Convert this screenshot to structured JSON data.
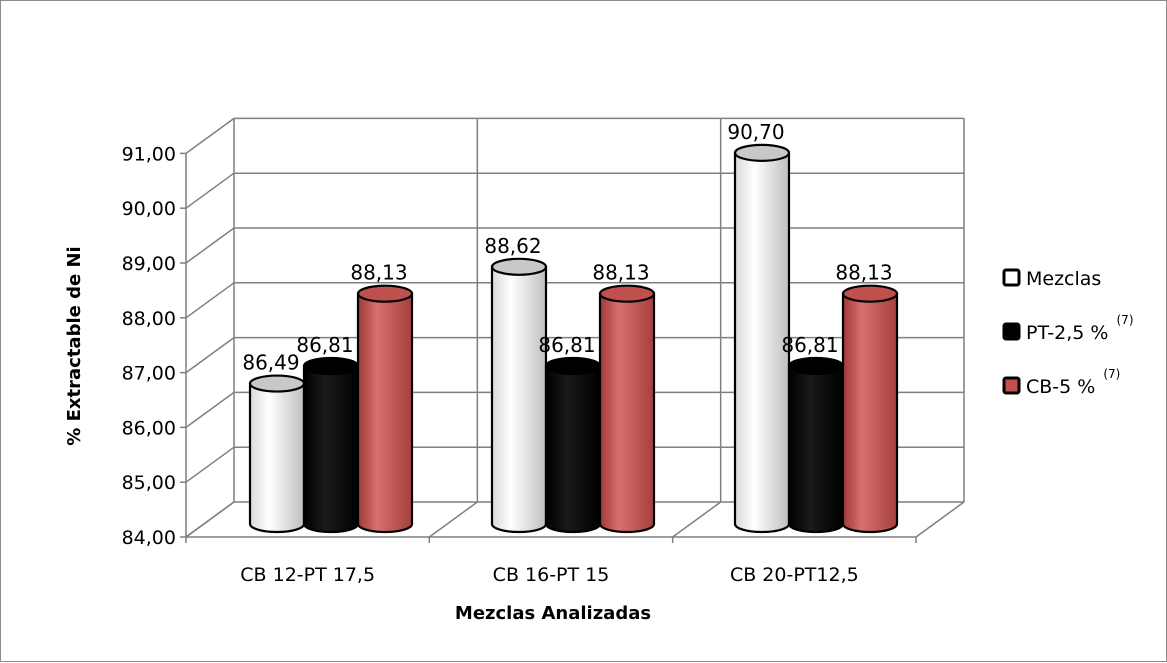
{
  "chart_data": {
    "type": "bar",
    "style": "3d-cylinder",
    "categories": [
      "CB 12-PT 17,5",
      "CB 16-PT 15",
      "CB 20-PT12,5"
    ],
    "series": [
      {
        "name": "Mezclas",
        "name_sup": "",
        "values": [
          86.49,
          88.62,
          90.7
        ],
        "labels": [
          "86,49",
          "88,62",
          "90,70"
        ],
        "color": "#ffffff"
      },
      {
        "name": "PT-2,5 %",
        "name_sup": "(7)",
        "values": [
          86.81,
          86.81,
          86.81
        ],
        "labels": [
          "86,81",
          "86,81",
          "86,81"
        ],
        "color": "#000000"
      },
      {
        "name": "CB-5 %",
        "name_sup": "(7)",
        "values": [
          88.13,
          88.13,
          88.13
        ],
        "labels": [
          "88,13",
          "88,13",
          "88,13"
        ],
        "color": "#c0504d"
      }
    ],
    "xlabel": "Mezclas Analizadas",
    "ylabel": "% Extractable de Ni",
    "ylim": [
      84,
      91
    ],
    "yticks": [
      "84,00",
      "85,00",
      "86,00",
      "87,00",
      "88,00",
      "89,00",
      "90,00",
      "91,00"
    ],
    "grid": true,
    "legend_position": "right"
  }
}
